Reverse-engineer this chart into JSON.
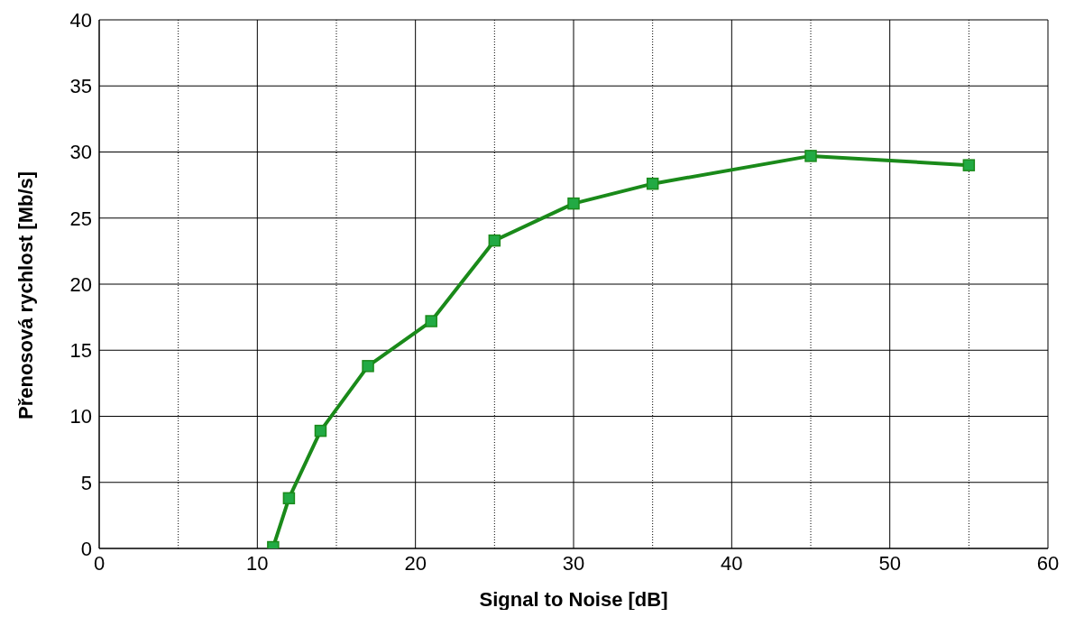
{
  "chart_data": {
    "type": "line",
    "xlabel": "Signal to Noise [dB]",
    "ylabel": "Přenosová rychlost [Mb/s]",
    "x": [
      11,
      12,
      14,
      17,
      21,
      25,
      30,
      35,
      45,
      55
    ],
    "series": [
      {
        "color": "#1a8a1a",
        "values": [
          0.1,
          3.8,
          8.9,
          13.8,
          17.2,
          23.3,
          26.1,
          27.6,
          29.7,
          29.0
        ]
      }
    ],
    "xlim": [
      0,
      60
    ],
    "xticks": [
      0,
      {
        "value": 5,
        "label": null
      },
      10,
      {
        "value": 15,
        "label": null
      },
      20,
      {
        "value": 25,
        "label": null
      },
      30,
      {
        "value": 35,
        "label": null
      },
      40,
      {
        "value": 45,
        "label": null
      },
      50,
      {
        "value": 55,
        "label": null
      },
      60
    ],
    "ylim": [
      0,
      40
    ],
    "yticks": [
      0,
      5,
      10,
      15,
      20,
      25,
      30,
      35,
      40
    ],
    "grid": true,
    "marker": "square",
    "line_style": "solid",
    "legend": false
  }
}
